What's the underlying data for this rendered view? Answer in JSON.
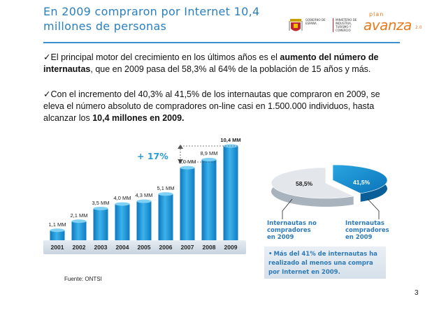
{
  "slide": {
    "title": "En 2009 compraron por Internet 10,4 millones de personas",
    "page_number": "3",
    "source": "Fuente:  ONTSI"
  },
  "logos": {
    "gov_left": "GOBIERNO DE ESPAÑA",
    "gov_right": "MINISTERIO DE INDUSTRIA, TURISMO Y COMERCIO",
    "plan_small": "plan",
    "plan_big": "avanza",
    "plan_sup": "2.0"
  },
  "bullets": [
    {
      "check": "✓",
      "text_before": "El principal motor del crecimiento en los últimos años es el ",
      "bold": "aumento del número de internautas",
      "text_after": ", que en 2009 pasa del 58,3% al 64% de la población de 15 años y más."
    },
    {
      "check": "✓",
      "text_before": "Con el incremento del 40,3% al 41,5% de los internautas que compraron en 2009, se eleva el número absoluto de compradores on-line casi en 1.500.000 individuos, hasta alcanzar los ",
      "bold": "10,4 millones en 2009.",
      "text_after": ""
    }
  ],
  "growth_label": "+ 17%",
  "chart_data": [
    {
      "type": "bar",
      "categories": [
        "2001",
        "2002",
        "2003",
        "2004",
        "2005",
        "2006",
        "2007",
        "2008",
        "2009"
      ],
      "values": [
        1.1,
        2.1,
        3.5,
        4.0,
        4.3,
        5.1,
        8.0,
        8.9,
        10.4
      ],
      "data_labels": [
        "1,1 MM",
        "2,1 MM",
        "3,5 MM",
        "4,0 MM",
        "4,3 MM",
        "5,1 MM",
        "8,0 MM",
        "8,9 MM",
        "10,4 MM"
      ],
      "title": "",
      "xlabel": "",
      "ylabel": "",
      "ylim": [
        0,
        11
      ],
      "grid": false,
      "annotation": "+ 17%",
      "color": "#1f9ad8"
    },
    {
      "type": "pie",
      "categories": [
        "Internautas no compradores en 2009",
        "Internautas compradores en 2009"
      ],
      "values": [
        58.5,
        41.5
      ],
      "data_labels": [
        "58,5%",
        "41,5%"
      ],
      "colors": [
        "#dfe4ea",
        "#1f9ad8"
      ]
    }
  ],
  "pie_legend": {
    "left": [
      "Internautas no",
      "compradores",
      "en 2009"
    ],
    "right": [
      "Internautas",
      "compradores",
      "en 2009"
    ]
  },
  "note": {
    "bullet": "•",
    "lines": [
      "Más del 41% de internautas ha",
      "realizado al menos una compra",
      "por Internet en 2009."
    ]
  }
}
